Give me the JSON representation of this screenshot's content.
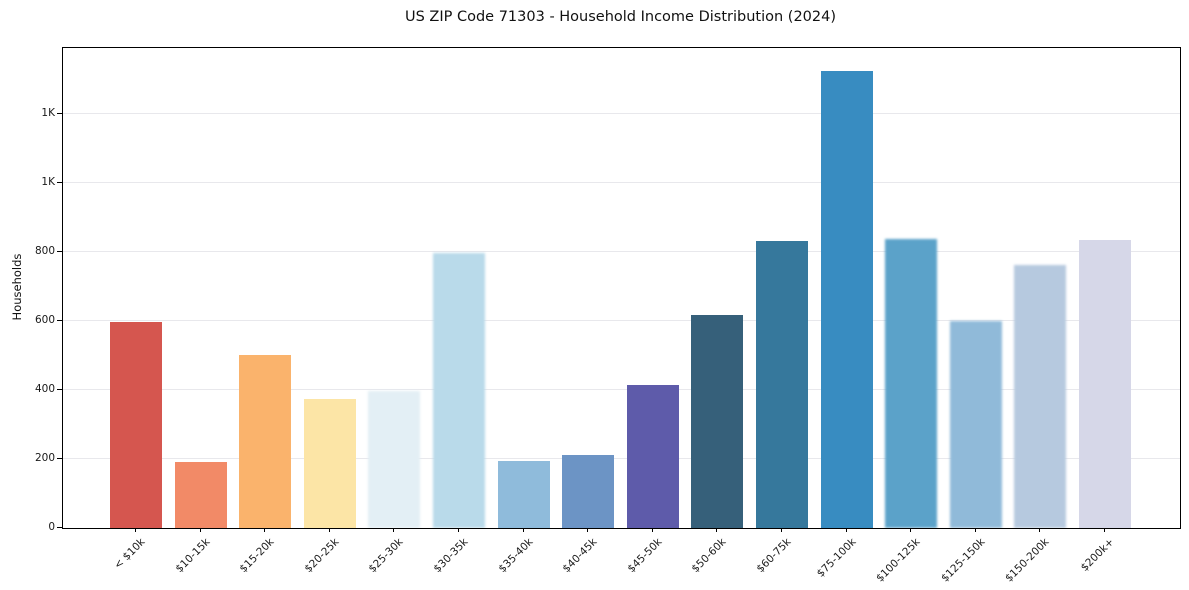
{
  "chart_data": {
    "type": "bar",
    "title": "US ZIP Code 71303 - Household Income Distribution (2024)",
    "xlabel": "",
    "ylabel": "Households",
    "categories": [
      "< $10k",
      "$10-15k",
      "$15-20k",
      "$20-25k",
      "$25-30k",
      "$30-35k",
      "$35-40k",
      "$40-45k",
      "$45-50k",
      "$50-60k",
      "$60-75k",
      "$75-100k",
      "$100-125k",
      "$125-150k",
      "$150-200k",
      "$200k+"
    ],
    "values": [
      598,
      192,
      500,
      374,
      398,
      797,
      195,
      212,
      414,
      616,
      830,
      1324,
      836,
      599,
      761,
      834
    ],
    "bar_colors": [
      "#d5564f",
      "#f28a67",
      "#fab36c",
      "#fce5a6",
      "#e3eff5",
      "#b9daea",
      "#8fbbdb",
      "#6c94c5",
      "#5e5baa",
      "#36607a",
      "#36789c",
      "#388cc1",
      "#5ba2c9",
      "#90bad9",
      "#b6c9df",
      "#d6d7e8"
    ],
    "soft_edge_bars": [
      false,
      false,
      false,
      false,
      true,
      true,
      false,
      false,
      false,
      false,
      false,
      false,
      true,
      true,
      true,
      false
    ],
    "ylim": [
      0,
      1390
    ],
    "yticks": [
      {
        "value": 0,
        "label": "0"
      },
      {
        "value": 200,
        "label": "200"
      },
      {
        "value": 400,
        "label": "400"
      },
      {
        "value": 600,
        "label": "600"
      },
      {
        "value": 800,
        "label": "800"
      },
      {
        "value": 1000,
        "label": "1K"
      },
      {
        "value": 1200,
        "label": "1K"
      }
    ],
    "grid": "horizontal",
    "legend": "none",
    "background_color": "#ffffff",
    "gridline_color": "#e8e8ec"
  }
}
